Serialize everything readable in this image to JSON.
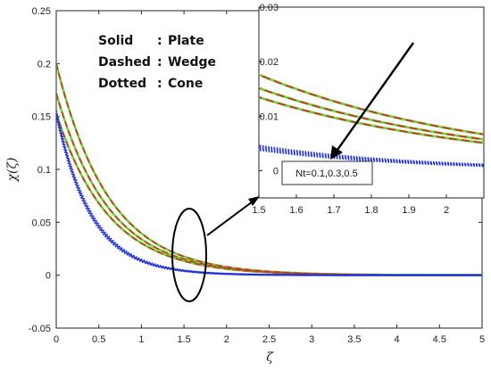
{
  "chart_data": {
    "type": "line",
    "xlabel": "ζ",
    "ylabel": "χ(ζ)",
    "xlim": [
      0,
      5
    ],
    "ylim": [
      -0.05,
      0.25
    ],
    "xticks": [
      "0",
      "0.5",
      "1",
      "1.5",
      "2",
      "2.5",
      "3",
      "3.5",
      "4",
      "4.5",
      "5"
    ],
    "yticks": [
      "-0.05",
      "0",
      "0.05",
      "0.1",
      "0.15",
      "0.2",
      "0.25"
    ],
    "grid": false,
    "legend_lines": [
      {
        "key": "Solid",
        "sep": ":",
        "value": "Plate"
      },
      {
        "key": "Dashed",
        "sep": ":",
        "value": "Wedge"
      },
      {
        "key": "Dotted",
        "sep": ":",
        "value": "Cone"
      }
    ],
    "annotation": "Nt=0.1,0.3,0.5",
    "series": [
      {
        "style": "solid",
        "color": "#7ccf3c",
        "initial": [
          0.2,
          0.172,
          0.153
        ],
        "decay": [
          1.62,
          1.62,
          1.62
        ]
      },
      {
        "style": "dashed",
        "color": "#c0392b",
        "initial": [
          0.2,
          0.172,
          0.153
        ],
        "decay": [
          1.62,
          1.62,
          1.62
        ]
      },
      {
        "style": "dotted",
        "color": "#1f2fd6",
        "initial": [
          0.155,
          0.153,
          0.151
        ],
        "decay": [
          2.35,
          2.4,
          2.45
        ]
      }
    ],
    "inset": {
      "xlim": [
        1.5,
        2.1
      ],
      "ylim": [
        -0.005,
        0.03
      ],
      "xticks": [
        "1.5",
        "1.6",
        "1.7",
        "1.8",
        "1.9",
        "2"
      ],
      "yticks": [
        "0",
        "0.01",
        "0.02",
        "0.03"
      ]
    }
  },
  "colors": {
    "axis": "#222222",
    "solid_series": "#7ccf3c",
    "dashed_series": "#c0392b",
    "dotted_series": "#1f2fd6"
  }
}
